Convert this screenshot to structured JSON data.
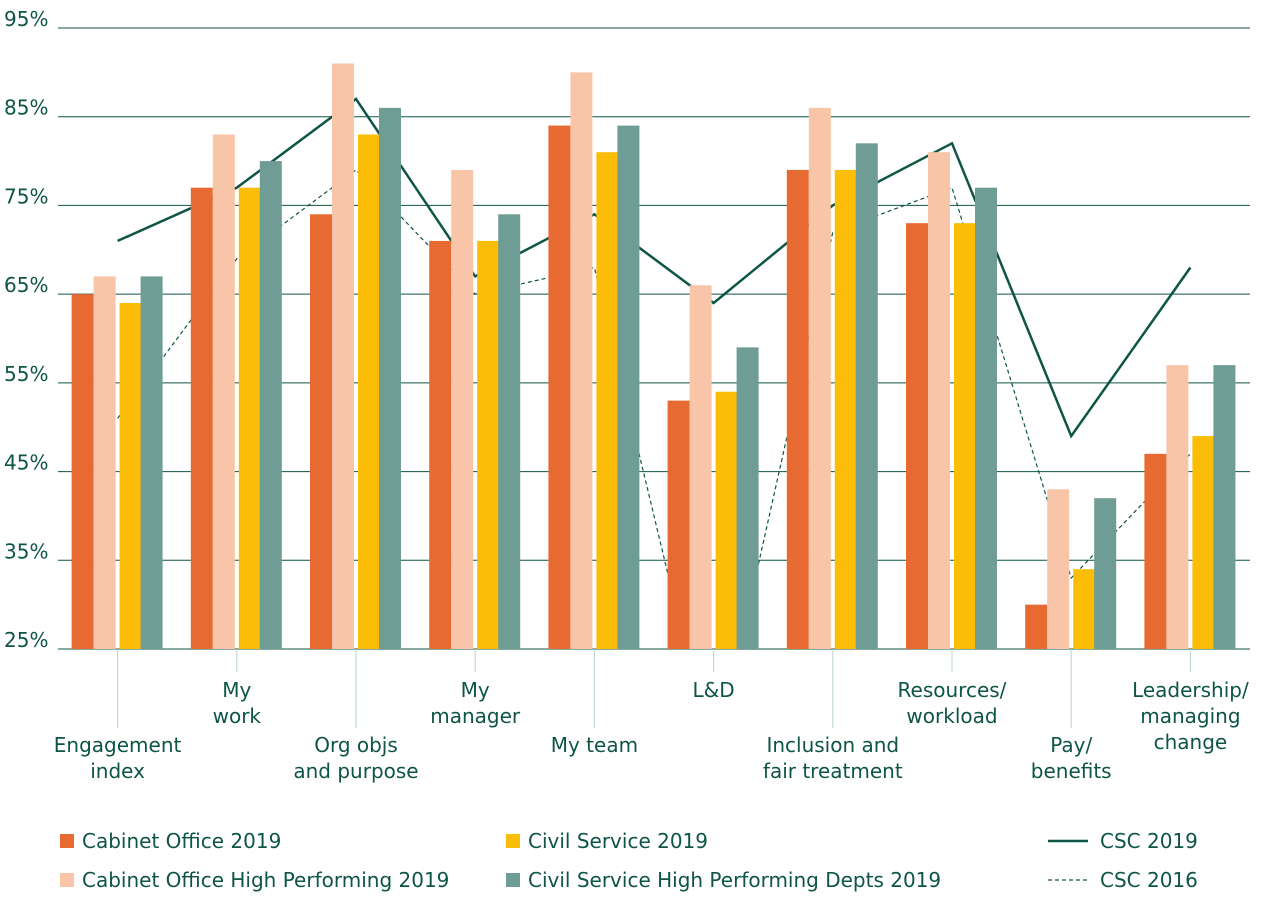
{
  "chart_data": {
    "type": "bar",
    "categories": [
      [
        "Engagement",
        "index"
      ],
      [
        "My",
        "work"
      ],
      [
        "Org objs",
        "and purpose"
      ],
      [
        "My",
        "manager"
      ],
      [
        "My team"
      ],
      [
        "L&D"
      ],
      [
        "Inclusion and",
        "fair treatment"
      ],
      [
        "Resources/",
        "workload"
      ],
      [
        "Pay/",
        "benefits"
      ],
      [
        "Leadership/",
        "managing",
        "change"
      ]
    ],
    "series": [
      {
        "name": "Cabinet Office 2019",
        "color": "#e86a33",
        "values": [
          65,
          77,
          74,
          71,
          84,
          53,
          79,
          73,
          30,
          47
        ]
      },
      {
        "name": "Cabinet Office High Performing 2019",
        "color": "#f8c5a8",
        "values": [
          67,
          83,
          91,
          79,
          90,
          66,
          86,
          81,
          43,
          57
        ]
      },
      {
        "name": "Civil Service 2019",
        "color": "#fbbd08",
        "values": [
          64,
          77,
          83,
          71,
          81,
          54,
          79,
          73,
          34,
          49
        ]
      },
      {
        "name": "Civil Service High Performing Depts 2019",
        "color": "#6f9c94",
        "values": [
          67,
          80,
          86,
          74,
          84,
          59,
          82,
          77,
          42,
          57
        ]
      },
      {
        "name": "CSC 2019",
        "color": "#0e5546",
        "type": "line",
        "dashed": false,
        "values": [
          71,
          77,
          87,
          67,
          74,
          64,
          75,
          82,
          49,
          68
        ]
      },
      {
        "name": "CSC 2016",
        "color": "#0e5546",
        "type": "line",
        "dashed": true,
        "values": [
          51,
          69,
          79,
          65,
          68,
          12,
          72,
          77,
          33,
          47
        ]
      }
    ],
    "ylim": [
      25,
      95
    ],
    "yticks": [
      {
        "value": 25,
        "label": "25%"
      },
      {
        "value": 35,
        "label": "35%"
      },
      {
        "value": 45,
        "label": "45%"
      },
      {
        "value": 55,
        "label": "55%"
      },
      {
        "value": 65,
        "label": "65%"
      },
      {
        "value": 75,
        "label": "75%"
      },
      {
        "value": 85,
        "label": "85%"
      },
      {
        "value": 95,
        "label": "95%"
      }
    ],
    "grid": true
  }
}
